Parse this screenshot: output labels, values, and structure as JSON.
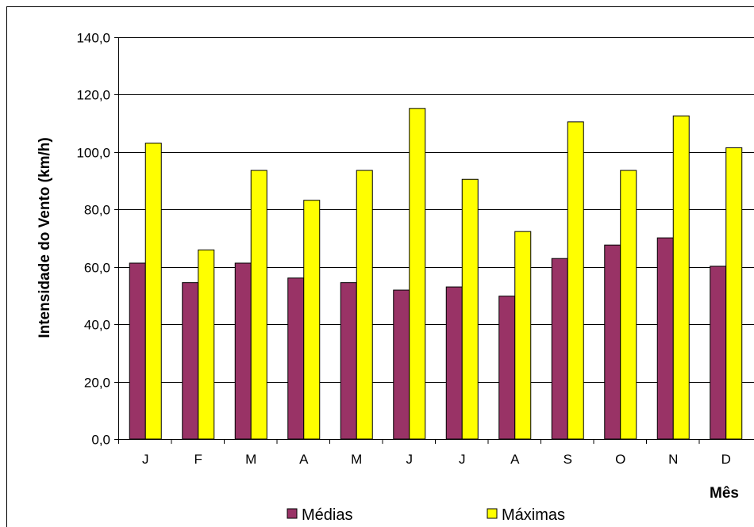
{
  "chart_data": {
    "type": "bar",
    "categories": [
      "J",
      "F",
      "M",
      "A",
      "M",
      "J",
      "J",
      "A",
      "S",
      "O",
      "N",
      "D"
    ],
    "series": [
      {
        "name": "Médias",
        "color": "#993366",
        "values": [
          61.3,
          54.5,
          61.3,
          56.1,
          54.5,
          51.9,
          53.0,
          49.8,
          62.9,
          67.6,
          70.1,
          60.2
        ]
      },
      {
        "name": "Máximas",
        "color": "#ffff00",
        "values": [
          103.1,
          65.9,
          93.6,
          83.2,
          93.6,
          115.2,
          90.5,
          72.3,
          110.5,
          93.6,
          112.6,
          101.5
        ]
      }
    ],
    "ylim": [
      0,
      140
    ],
    "yticks": [
      "0,0",
      "20,0",
      "40,0",
      "60,0",
      "80,0",
      "100,0",
      "120,0",
      "140,0"
    ],
    "xlabel": "Mês",
    "ylabel": "Intensidade do Vento (km/h)",
    "grid": true,
    "legend_position": "bottom"
  }
}
